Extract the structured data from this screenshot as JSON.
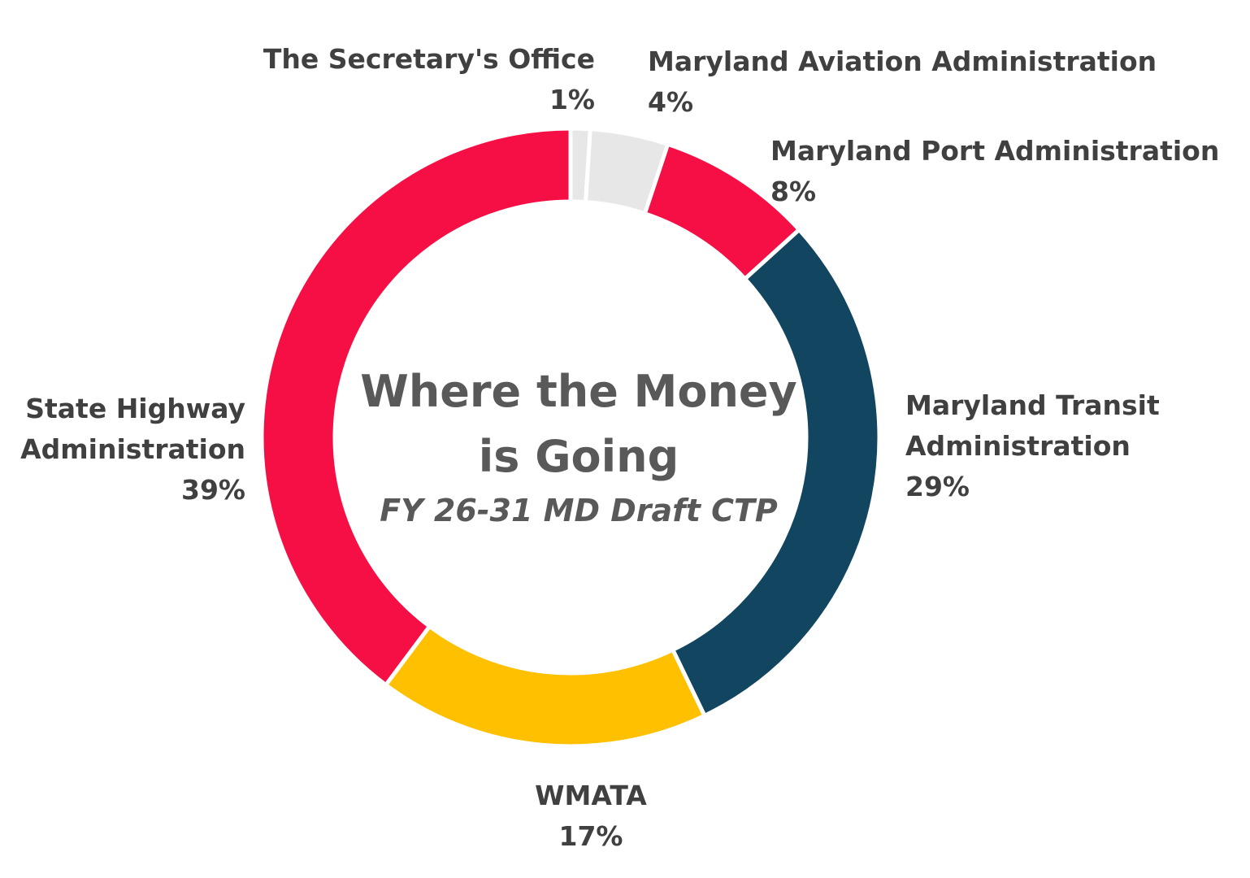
{
  "chart_data": {
    "type": "pie",
    "title": "Where the Money is Going",
    "title_lines": [
      "Where the Money",
      "is Going"
    ],
    "subtitle": "FY 26-31 MD Draft CTP",
    "slices": [
      {
        "name": "The Secretary's Office",
        "name_lines": [
          "The Secretary's Office"
        ],
        "value": 1,
        "percent_label": "1%",
        "color": "#E7E7E7"
      },
      {
        "name": "Maryland Aviation Administration",
        "name_lines": [
          "Maryland Aviation Administration"
        ],
        "value": 4,
        "percent_label": "4%",
        "color": "#E7E7E7"
      },
      {
        "name": "Maryland Port Administration",
        "name_lines": [
          "Maryland Port Administration"
        ],
        "value": 8,
        "percent_label": "8%",
        "color": "#F50F45"
      },
      {
        "name": "Maryland Transit Administration",
        "name_lines": [
          "Maryland Transit",
          "Administration"
        ],
        "value": 29,
        "percent_label": "29%",
        "color": "#124660"
      },
      {
        "name": "WMATA",
        "name_lines": [
          "WMATA"
        ],
        "value": 17,
        "percent_label": "17%",
        "color": "#FFC000"
      },
      {
        "name": "State Highway Administration",
        "name_lines": [
          "State Highway",
          "Administration"
        ],
        "value": 39,
        "percent_label": "39%",
        "color": "#F50F45"
      }
    ],
    "style": "donut",
    "legend": "none",
    "label_color": "#404040",
    "title_color": "#595959"
  }
}
